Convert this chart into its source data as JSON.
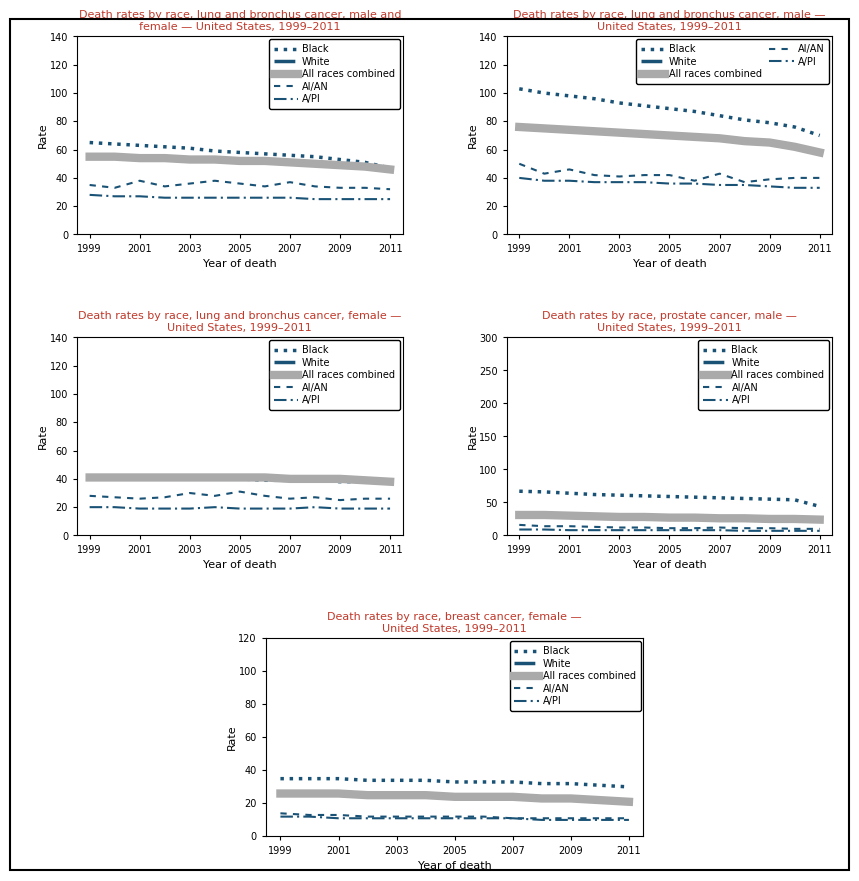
{
  "years": [
    1999,
    2000,
    2001,
    2002,
    2003,
    2004,
    2005,
    2006,
    2007,
    2008,
    2009,
    2010,
    2011
  ],
  "charts": {
    "lung_both": {
      "title": "Death rates by race, lung and bronchus cancer, male and\nfemale — United States, 1999–2011",
      "ylim": [
        0,
        140
      ],
      "yticks": [
        0,
        20,
        40,
        60,
        80,
        100,
        120,
        140
      ],
      "legend_ncols": 1,
      "series": {
        "Black": [
          65,
          64,
          63,
          62,
          61,
          59,
          58,
          57,
          56,
          55,
          53,
          51,
          47
        ],
        "White": [
          56,
          56,
          55,
          54,
          54,
          53,
          53,
          52,
          51,
          50,
          50,
          48,
          47
        ],
        "All races combined": [
          55,
          55,
          54,
          54,
          53,
          53,
          52,
          52,
          51,
          50,
          49,
          48,
          46
        ],
        "AI/AN": [
          35,
          33,
          38,
          34,
          36,
          38,
          36,
          34,
          37,
          34,
          33,
          33,
          32
        ],
        "A/PI": [
          28,
          27,
          27,
          26,
          26,
          26,
          26,
          26,
          26,
          25,
          25,
          25,
          25
        ]
      }
    },
    "lung_male": {
      "title": "Death rates by race, lung and bronchus cancer, male —\nUnited States, 1999–2011",
      "ylim": [
        0,
        140
      ],
      "yticks": [
        0,
        20,
        40,
        60,
        80,
        100,
        120,
        140
      ],
      "legend_ncols": 2,
      "series": {
        "Black": [
          103,
          100,
          98,
          96,
          93,
          91,
          89,
          87,
          84,
          81,
          79,
          76,
          70
        ],
        "White": [
          77,
          76,
          75,
          74,
          73,
          72,
          71,
          70,
          69,
          67,
          66,
          63,
          59
        ],
        "All races combined": [
          76,
          75,
          74,
          73,
          72,
          71,
          70,
          69,
          68,
          66,
          65,
          62,
          58
        ],
        "AI/AN": [
          50,
          43,
          46,
          42,
          41,
          42,
          42,
          38,
          43,
          37,
          39,
          40,
          40
        ],
        "A/PI": [
          40,
          38,
          38,
          37,
          37,
          37,
          36,
          36,
          35,
          35,
          34,
          33,
          33
        ]
      }
    },
    "lung_female": {
      "title": "Death rates by race, lung and bronchus cancer, female —\nUnited States, 1999–2011",
      "ylim": [
        0,
        140
      ],
      "yticks": [
        0,
        20,
        40,
        60,
        80,
        100,
        120,
        140
      ],
      "legend_ncols": 1,
      "series": {
        "Black": [
          41,
          41,
          41,
          40,
          40,
          40,
          40,
          39,
          39,
          39,
          38,
          38,
          38
        ],
        "White": [
          41,
          41,
          41,
          41,
          41,
          41,
          41,
          41,
          41,
          41,
          40,
          40,
          38
        ],
        "All races combined": [
          41,
          41,
          41,
          41,
          41,
          41,
          41,
          41,
          40,
          40,
          40,
          39,
          38
        ],
        "AI/AN": [
          28,
          27,
          26,
          27,
          30,
          28,
          31,
          28,
          26,
          27,
          25,
          26,
          26
        ],
        "A/PI": [
          20,
          20,
          19,
          19,
          19,
          20,
          19,
          19,
          19,
          20,
          19,
          19,
          19
        ]
      }
    },
    "prostate": {
      "title": "Death rates by race, prostate cancer, male —\nUnited States, 1999–2011",
      "ylim": [
        0,
        300
      ],
      "yticks": [
        0,
        50,
        100,
        150,
        200,
        250,
        300
      ],
      "legend_ncols": 1,
      "series": {
        "Black": [
          67,
          66,
          64,
          62,
          61,
          60,
          59,
          58,
          57,
          56,
          55,
          54,
          44
        ],
        "White": [
          30,
          29,
          28,
          27,
          26,
          26,
          25,
          25,
          24,
          24,
          23,
          23,
          22
        ],
        "All races combined": [
          31,
          31,
          30,
          29,
          28,
          28,
          27,
          27,
          26,
          26,
          25,
          25,
          24
        ],
        "AI/AN": [
          16,
          14,
          14,
          13,
          12,
          12,
          11,
          11,
          12,
          11,
          11,
          10,
          10
        ],
        "A/PI": [
          9,
          9,
          8,
          8,
          8,
          8,
          8,
          8,
          8,
          7,
          7,
          7,
          7
        ]
      }
    },
    "breast": {
      "title": "Death rates by race, breast cancer, female —\nUnited States, 1999–2011",
      "ylim": [
        0,
        120
      ],
      "yticks": [
        0,
        20,
        40,
        60,
        80,
        100,
        120
      ],
      "legend_ncols": 1,
      "series": {
        "Black": [
          35,
          35,
          35,
          34,
          34,
          34,
          33,
          33,
          33,
          32,
          32,
          31,
          30
        ],
        "White": [
          27,
          27,
          26,
          26,
          25,
          25,
          25,
          24,
          24,
          23,
          23,
          22,
          21
        ],
        "All races combined": [
          26,
          26,
          26,
          25,
          25,
          25,
          24,
          24,
          24,
          23,
          23,
          22,
          21
        ],
        "AI/AN": [
          14,
          13,
          13,
          12,
          12,
          12,
          12,
          12,
          11,
          11,
          11,
          11,
          11
        ],
        "A/PI": [
          12,
          12,
          11,
          11,
          11,
          11,
          11,
          11,
          11,
          10,
          10,
          10,
          10
        ]
      }
    }
  },
  "line_styles": {
    "Black": {
      "color": "#1a5276",
      "linestyle": "dotted",
      "linewidth": 2.5,
      "dashes": null
    },
    "White": {
      "color": "#1a5276",
      "linestyle": "dashed",
      "linewidth": 2.5,
      "dashes": [
        6,
        2
      ]
    },
    "All races combined": {
      "color": "#aaaaaa",
      "linestyle": "solid",
      "linewidth": 6.0,
      "dashes": null
    },
    "AI/AN": {
      "color": "#1a5276",
      "linestyle": "dashed",
      "linewidth": 1.5,
      "dashes": [
        3,
        3
      ]
    },
    "A/PI": {
      "color": "#1a5276",
      "linestyle": "dashdot",
      "linewidth": 1.5,
      "dashes": [
        6,
        2,
        1,
        2
      ]
    }
  },
  "title_color": "#c0392b",
  "bg_color": "#ffffff",
  "xlabel": "Year of death",
  "ylabel": "Rate",
  "xticks": [
    1999,
    2001,
    2003,
    2005,
    2007,
    2009,
    2011
  ]
}
